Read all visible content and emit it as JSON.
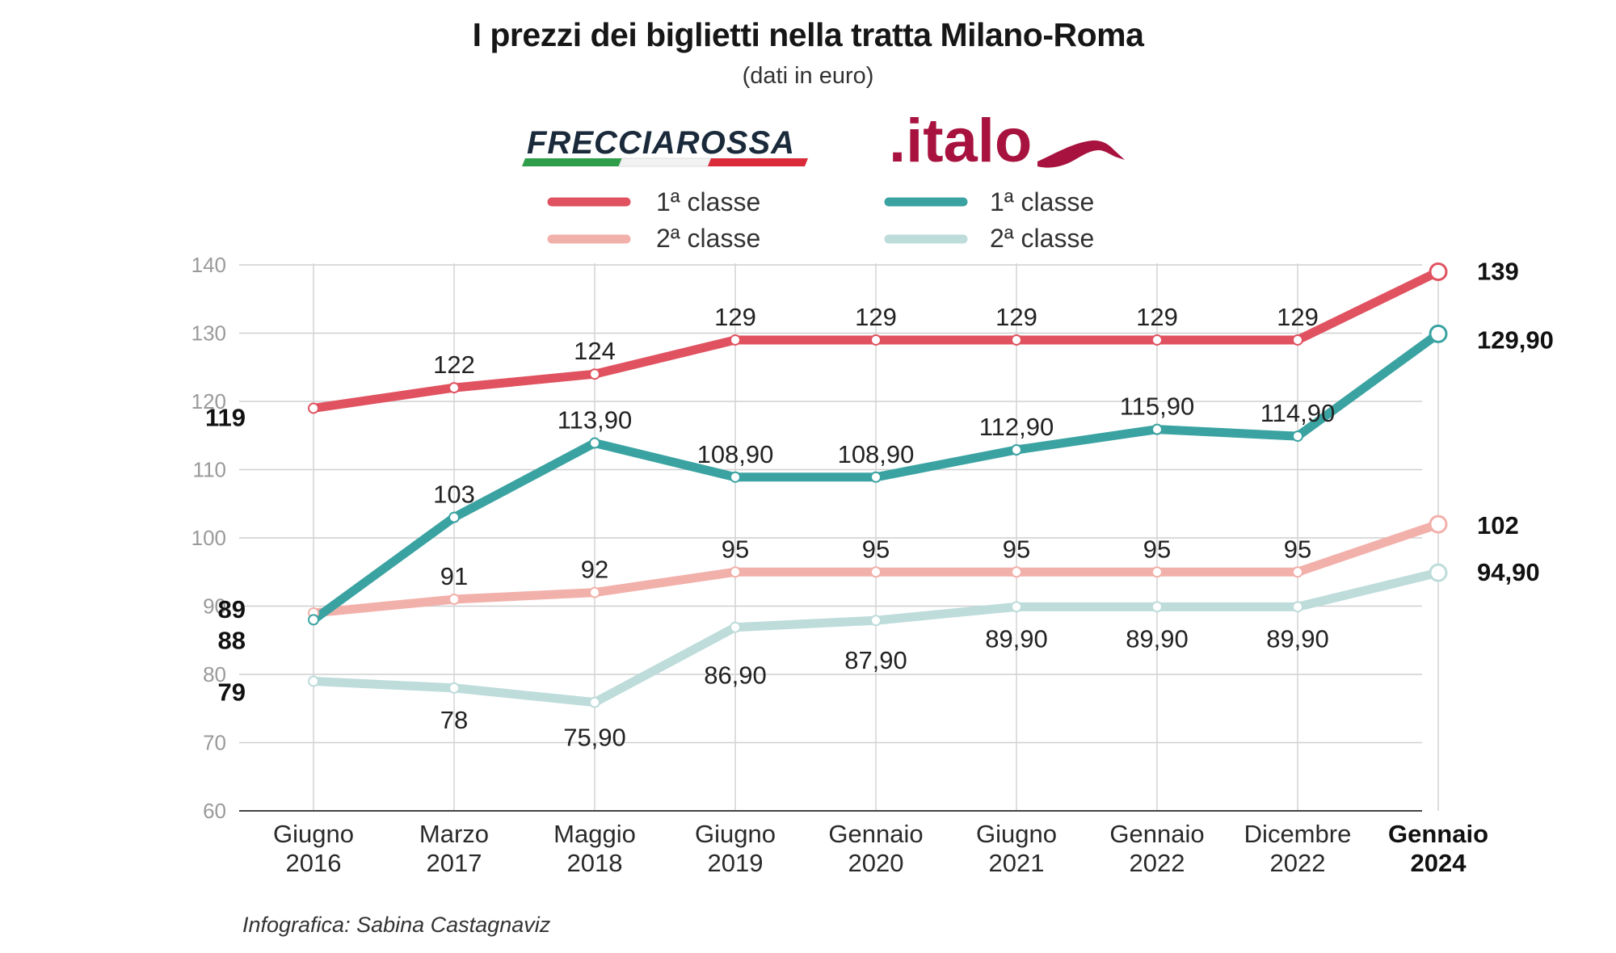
{
  "title": "I prezzi dei biglietti nella tratta Milano-Roma",
  "subtitle": "(dati in euro)",
  "credit": "Infografica: Sabina Castagnaviz",
  "brands": {
    "frecciarossa": {
      "name": "FRECCIAROSSA",
      "color": "#1a2a3a"
    },
    "italo": {
      "name": ".italo",
      "color": "#a8123e"
    }
  },
  "legend": [
    {
      "brand": "frecciarossa",
      "label": "1ª classe",
      "color": "#e05260"
    },
    {
      "brand": "frecciarossa",
      "label": "2ª classe",
      "color": "#f2b0aa"
    },
    {
      "brand": "italo",
      "label": "1ª classe",
      "color": "#3aa3a2"
    },
    {
      "brand": "italo",
      "label": "2ª classe",
      "color": "#bddcda"
    }
  ],
  "chart_data": {
    "type": "line",
    "title": "I prezzi dei biglietti nella tratta Milano-Roma",
    "subtitle": "(dati in euro)",
    "categories": [
      [
        "Giugno",
        "2016"
      ],
      [
        "Marzo",
        "2017"
      ],
      [
        "Maggio",
        "2018"
      ],
      [
        "Giugno",
        "2019"
      ],
      [
        "Gennaio",
        "2020"
      ],
      [
        "Giugno",
        "2021"
      ],
      [
        "Gennaio",
        "2022"
      ],
      [
        "Dicembre",
        "2022"
      ],
      [
        "Gennaio",
        "2024"
      ]
    ],
    "ylim": [
      60,
      140
    ],
    "yticks": [
      60,
      70,
      80,
      90,
      100,
      110,
      120,
      130,
      140
    ],
    "grid": true,
    "series": [
      {
        "name": "Frecciarossa 1ª classe",
        "color": "#e05260",
        "width": 11,
        "values": [
          119,
          122,
          124,
          129,
          129,
          129,
          129,
          129,
          139
        ],
        "labels": [
          "119",
          "122",
          "124",
          "129",
          "129",
          "129",
          "129",
          "129",
          "139"
        ]
      },
      {
        "name": "Italo 1ª classe",
        "color": "#3aa3a2",
        "width": 11,
        "values": [
          88,
          103,
          113.9,
          108.9,
          108.9,
          112.9,
          115.9,
          114.9,
          129.9
        ],
        "labels": [
          "88",
          "103",
          "113,90",
          "108,90",
          "108,90",
          "112,90",
          "115,90",
          "114,90",
          "129,90"
        ]
      },
      {
        "name": "Frecciarossa 2ª classe",
        "color": "#f2b0aa",
        "width": 11,
        "values": [
          89,
          91,
          92,
          95,
          95,
          95,
          95,
          95,
          102
        ],
        "labels": [
          "89",
          "91",
          "92",
          "95",
          "95",
          "95",
          "95",
          "95",
          "102"
        ]
      },
      {
        "name": "Italo 2ª classe",
        "color": "#bddcda",
        "width": 11,
        "values": [
          79,
          78,
          75.9,
          86.9,
          87.9,
          89.9,
          89.9,
          89.9,
          94.9
        ],
        "labels": [
          "79",
          "78",
          "75,90",
          "86,90",
          "87,90",
          "89,90",
          "89,90",
          "89,90",
          "94,90"
        ]
      }
    ]
  }
}
